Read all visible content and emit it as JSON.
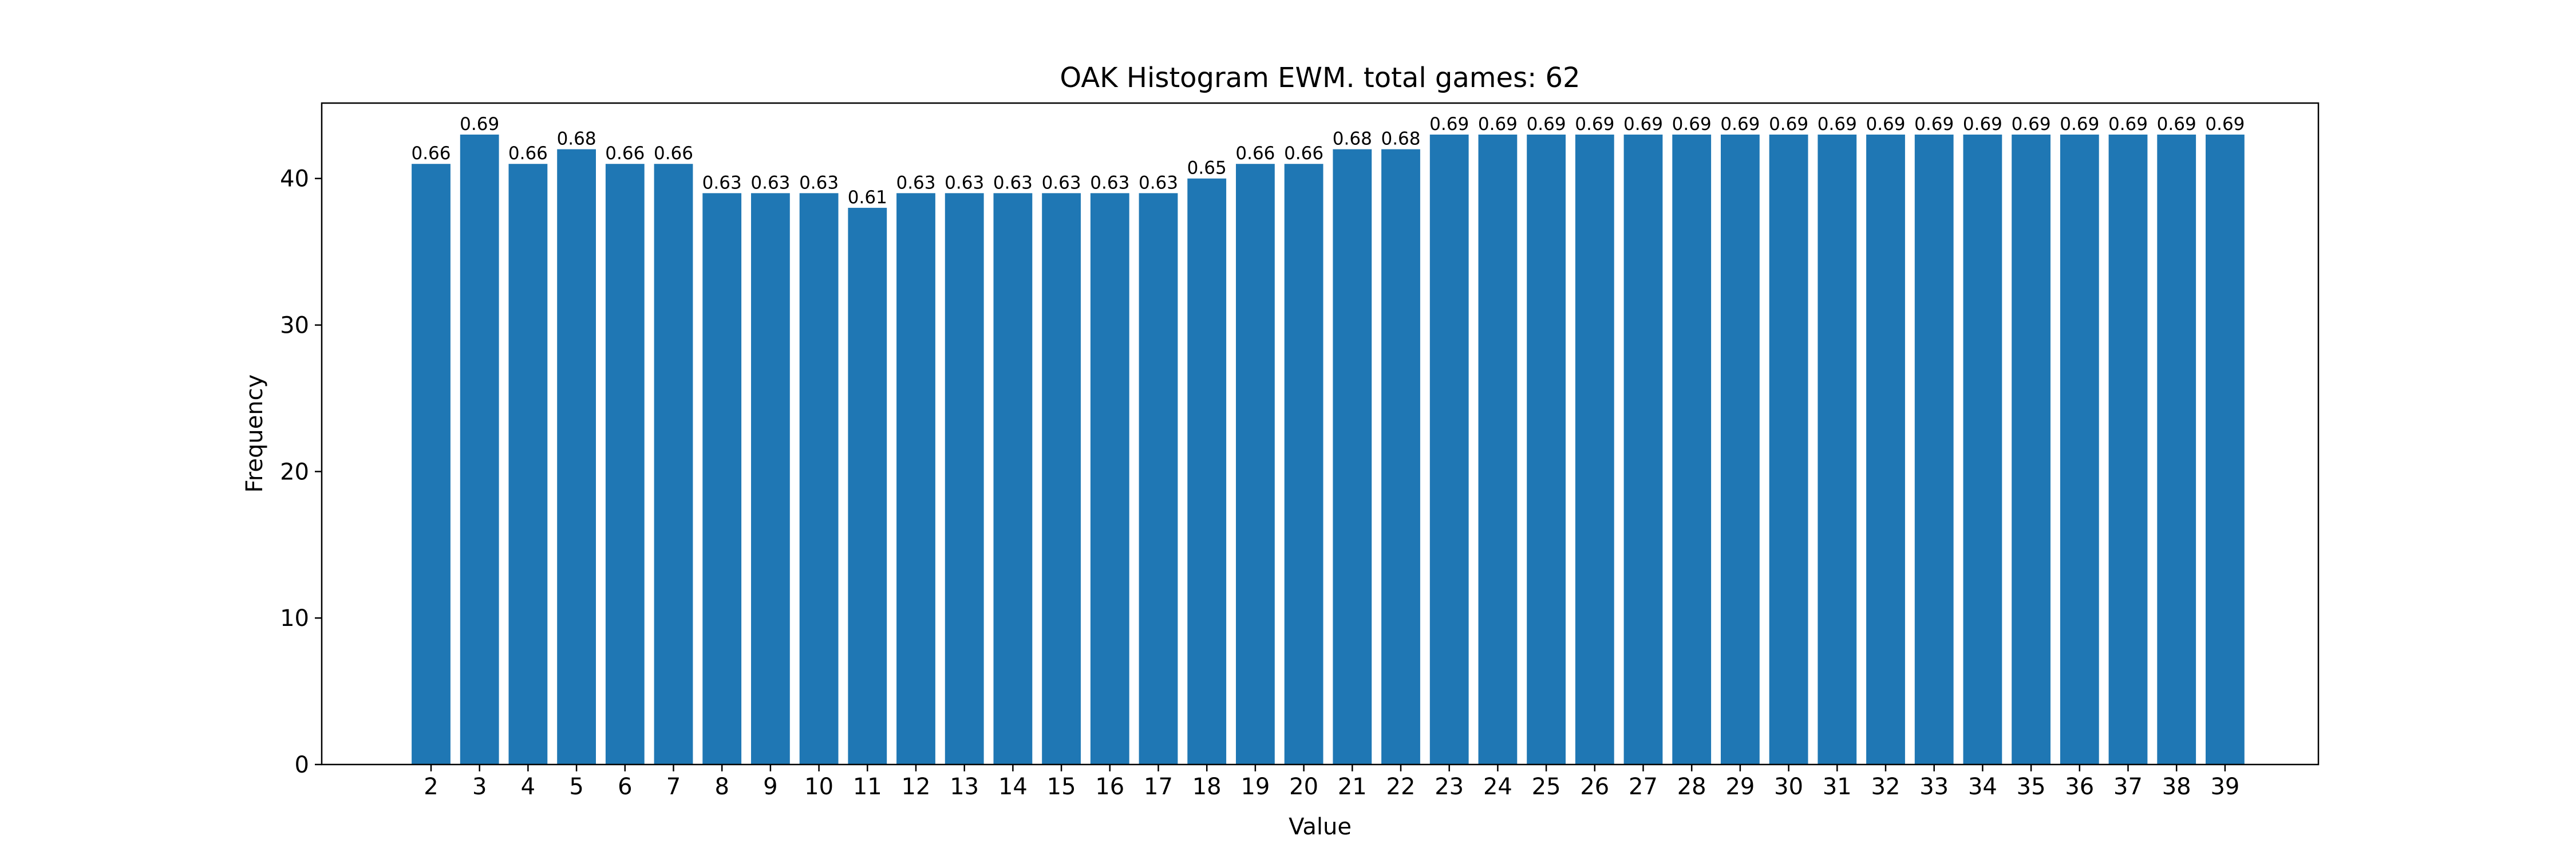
{
  "chart_data": {
    "type": "bar",
    "title": "OAK Histogram EWM. total games: 62",
    "xlabel": "Value",
    "ylabel": "Frequency",
    "categories": [
      "2",
      "3",
      "4",
      "5",
      "6",
      "7",
      "8",
      "9",
      "10",
      "11",
      "12",
      "13",
      "14",
      "15",
      "16",
      "17",
      "18",
      "19",
      "20",
      "21",
      "22",
      "23",
      "24",
      "25",
      "26",
      "27",
      "28",
      "29",
      "30",
      "31",
      "32",
      "33",
      "34",
      "35",
      "36",
      "37",
      "38",
      "39"
    ],
    "values": [
      41,
      43,
      41,
      42,
      41,
      41,
      39,
      39,
      39,
      38,
      39,
      39,
      39,
      39,
      39,
      39,
      40,
      41,
      41,
      42,
      42,
      43,
      43,
      43,
      43,
      43,
      43,
      43,
      43,
      43,
      43,
      43,
      43,
      43,
      43,
      43,
      43,
      43
    ],
    "bar_labels": [
      "0.66",
      "0.69",
      "0.66",
      "0.68",
      "0.66",
      "0.66",
      "0.63",
      "0.63",
      "0.63",
      "0.61",
      "0.63",
      "0.63",
      "0.63",
      "0.63",
      "0.63",
      "0.63",
      "0.65",
      "0.66",
      "0.66",
      "0.68",
      "0.68",
      "0.69",
      "0.69",
      "0.69",
      "0.69",
      "0.69",
      "0.69",
      "0.69",
      "0.69",
      "0.69",
      "0.69",
      "0.69",
      "0.69",
      "0.69",
      "0.69",
      "0.69",
      "0.69",
      "0.69"
    ],
    "yticks": [
      0,
      10,
      20,
      30,
      40
    ],
    "ylim": [
      0,
      45.15
    ],
    "grid": false,
    "bar_color": "#1f77b4"
  }
}
